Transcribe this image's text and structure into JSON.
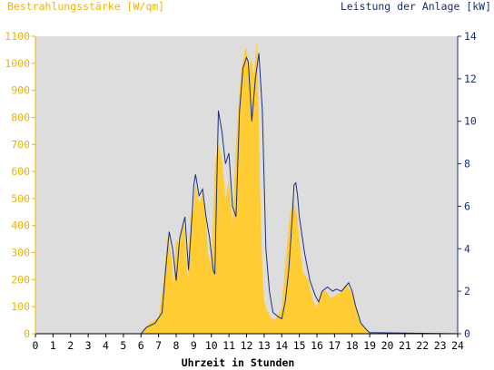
{
  "chart_data": {
    "type": "area",
    "title_left": "Bestrahlungsstärke [W/qm]",
    "title_right": "Leistung der Anlage [kW]",
    "xlabel": "Uhrzeit in Stunden",
    "x_ticks": [
      "0",
      "1",
      "2",
      "3",
      "4",
      "5",
      "6",
      "7",
      "8",
      "9",
      "10",
      "11",
      "12",
      "13",
      "14",
      "15",
      "16",
      "17",
      "18",
      "19",
      "20",
      "21",
      "22",
      "23",
      "24"
    ],
    "y_left_ticks": [
      "0",
      "100",
      "200",
      "300",
      "400",
      "500",
      "600",
      "700",
      "800",
      "900",
      "1000",
      "1100"
    ],
    "y_right_ticks": [
      "0",
      "2",
      "4",
      "6",
      "8",
      "10",
      "12",
      "14"
    ],
    "xlim": [
      0,
      24
    ],
    "ylim_left": [
      0,
      1100
    ],
    "ylim_right": [
      0,
      14
    ],
    "grid": false,
    "colors": {
      "irradiance_fill": "#ffcc33",
      "power_line": "#1a2e7a",
      "plot_bg": "#dddddd",
      "left_axis_text": "#f0b400",
      "right_axis_text": "#1a2e7a",
      "x_axis_text": "#000000"
    },
    "series": [
      {
        "kind": "irradiance",
        "axis": "left",
        "x": [
          0,
          6.0,
          6.2,
          6.5,
          7.0,
          7.3,
          7.5,
          7.7,
          7.85,
          8.0,
          8.2,
          8.4,
          8.5,
          8.65,
          8.8,
          9.0,
          9.1,
          9.3,
          9.5,
          9.7,
          9.8,
          10.0,
          10.2,
          10.4,
          10.6,
          10.8,
          11.0,
          11.2,
          11.4,
          11.6,
          11.7,
          11.9,
          12.0,
          12.1,
          12.3,
          12.4,
          12.6,
          12.75,
          12.8,
          12.9,
          13.0,
          13.2,
          13.4,
          13.6,
          13.8,
          14.0,
          14.2,
          14.4,
          14.6,
          14.8,
          14.9,
          15.0,
          15.2,
          15.5,
          15.8,
          16.0,
          16.2,
          16.5,
          16.8,
          17.0,
          17.3,
          17.6,
          17.8,
          18.0,
          18.2,
          18.5,
          18.8,
          19.0,
          24
        ],
        "y": [
          0,
          0,
          20,
          40,
          60,
          200,
          360,
          300,
          180,
          350,
          330,
          420,
          380,
          200,
          420,
          460,
          560,
          480,
          520,
          420,
          300,
          250,
          620,
          700,
          650,
          500,
          570,
          400,
          700,
          900,
          970,
          1050,
          1060,
          980,
          1020,
          950,
          1090,
          600,
          450,
          250,
          120,
          80,
          60,
          50,
          70,
          100,
          250,
          400,
          500,
          460,
          420,
          350,
          230,
          200,
          120,
          100,
          150,
          160,
          130,
          140,
          150,
          180,
          170,
          150,
          100,
          40,
          20,
          5,
          0
        ]
      },
      {
        "kind": "power",
        "axis": "right",
        "x": [
          0,
          6.0,
          6.3,
          6.8,
          7.2,
          7.4,
          7.6,
          7.8,
          8.0,
          8.2,
          8.4,
          8.5,
          8.7,
          8.9,
          9.0,
          9.1,
          9.3,
          9.5,
          9.7,
          9.9,
          10.1,
          10.2,
          10.4,
          10.6,
          10.8,
          11.0,
          11.2,
          11.4,
          11.6,
          11.8,
          12.0,
          12.1,
          12.3,
          12.5,
          12.7,
          12.9,
          13.1,
          13.3,
          13.5,
          13.8,
          14.0,
          14.2,
          14.4,
          14.6,
          14.7,
          14.8,
          14.9,
          15.0,
          15.3,
          15.6,
          15.9,
          16.1,
          16.3,
          16.6,
          16.9,
          17.1,
          17.4,
          17.6,
          17.8,
          18.0,
          18.2,
          18.5,
          18.8,
          19.0,
          24
        ],
        "y": [
          0,
          0,
          0.3,
          0.5,
          1.0,
          3.0,
          4.8,
          4.0,
          2.5,
          4.5,
          5.2,
          5.5,
          3.0,
          5.5,
          7.0,
          7.5,
          6.5,
          6.8,
          5.5,
          4.5,
          3.0,
          2.8,
          10.5,
          9.5,
          8.0,
          8.5,
          6.0,
          5.5,
          10.5,
          12.5,
          13.0,
          12.8,
          10.0,
          12.0,
          13.2,
          10.5,
          4.0,
          2.0,
          1.0,
          0.8,
          0.7,
          1.5,
          3.0,
          5.5,
          7.0,
          7.1,
          6.5,
          5.5,
          3.8,
          2.5,
          1.8,
          1.5,
          2.0,
          2.2,
          2.0,
          2.1,
          2.0,
          2.2,
          2.4,
          2.0,
          1.3,
          0.5,
          0.2,
          0.05,
          0
        ]
      }
    ]
  }
}
